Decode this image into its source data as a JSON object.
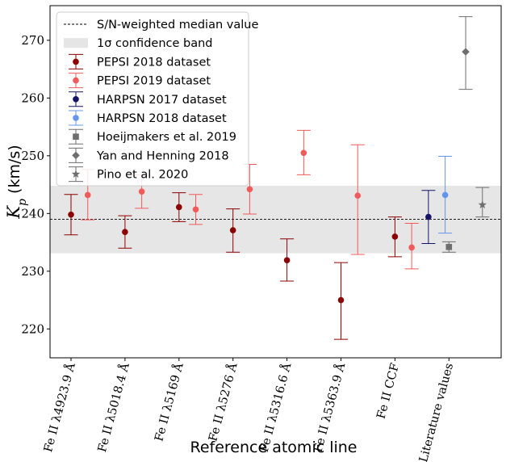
{
  "chart_data": {
    "type": "scatter",
    "xlabel": "Reference atomic line",
    "ylabel": "K_p (km/s)",
    "ylabel_parts": {
      "symbol": "K",
      "subscript": "p",
      "unit": " (km/s)"
    },
    "ylim": [
      215,
      276
    ],
    "yticks": [
      220,
      230,
      240,
      250,
      260,
      270
    ],
    "categories": [
      "Fe II λ4923.9 Å",
      "Fe II λ5018.4 Å",
      "Fe II λ5169 Å",
      "Fe II λ5276 Å",
      "Fe II λ5316.6 Å",
      "Fe II λ5363.9 Å",
      "Fe II CCF",
      "Literature values"
    ],
    "median": 239.0,
    "band": [
      233.1,
      244.8
    ],
    "grid": false,
    "legend_position": "top-left",
    "legend": [
      {
        "label": "S/N-weighted median value",
        "kind": "dashed-line",
        "color": "#000000"
      },
      {
        "label": "1σ confidence band",
        "kind": "band",
        "color": "#e5e5e5"
      },
      {
        "label": "PEPSI 2018 dataset",
        "kind": "errorbar-circle",
        "color": "#8b0000"
      },
      {
        "label": "PEPSI 2019 dataset",
        "kind": "errorbar-circle",
        "color": "#f05a5a"
      },
      {
        "label": "HARPSN 2017 dataset",
        "kind": "errorbar-circle",
        "color": "#141466"
      },
      {
        "label": "HARPSN 2018 dataset",
        "kind": "errorbar-circle",
        "color": "#6495ed"
      },
      {
        "label": "Hoeijmakers et al. 2019",
        "kind": "errorbar-square",
        "color": "#6e6e6e"
      },
      {
        "label": "Yan and Henning 2018",
        "kind": "errorbar-diamond",
        "color": "#6e6e6e"
      },
      {
        "label": "Pino et al. 2020",
        "kind": "errorbar-star",
        "color": "#6e6e6e"
      }
    ],
    "series": [
      {
        "name": "PEPSI 2018 dataset",
        "color": "#8b0000",
        "marker": "circle",
        "offset": 0,
        "points": [
          {
            "cat": 0,
            "y": 239.8,
            "lo": 236.3,
            "hi": 243.3
          },
          {
            "cat": 1,
            "y": 236.8,
            "lo": 234.0,
            "hi": 239.6
          },
          {
            "cat": 2,
            "y": 241.1,
            "lo": 238.6,
            "hi": 243.6
          },
          {
            "cat": 3,
            "y": 237.1,
            "lo": 233.3,
            "hi": 240.8
          },
          {
            "cat": 4,
            "y": 231.9,
            "lo": 228.3,
            "hi": 235.6
          },
          {
            "cat": 5,
            "y": 225.0,
            "lo": 218.2,
            "hi": 231.5
          },
          {
            "cat": 6,
            "y": 236.0,
            "lo": 232.5,
            "hi": 239.4
          }
        ]
      },
      {
        "name": "PEPSI 2019 dataset",
        "color": "#f05a5a",
        "marker": "circle",
        "offset": 0.31,
        "points": [
          {
            "cat": 0,
            "y": 243.2,
            "lo": 238.9,
            "hi": 247.6
          },
          {
            "cat": 1,
            "y": 243.8,
            "lo": 240.9,
            "hi": 246.7
          },
          {
            "cat": 2,
            "y": 240.7,
            "lo": 238.1,
            "hi": 243.3
          },
          {
            "cat": 3,
            "y": 244.2,
            "lo": 239.9,
            "hi": 248.5
          },
          {
            "cat": 4,
            "y": 250.5,
            "lo": 246.7,
            "hi": 254.4
          },
          {
            "cat": 5,
            "y": 243.1,
            "lo": 232.9,
            "hi": 251.9
          },
          {
            "cat": 6,
            "y": 234.1,
            "lo": 230.4,
            "hi": 238.3
          }
        ]
      },
      {
        "name": "HARPSN 2017 dataset",
        "color": "#141466",
        "marker": "circle",
        "offset": 0.62,
        "points": [
          {
            "cat": 6,
            "y": 239.4,
            "lo": 234.8,
            "hi": 244.0
          }
        ]
      },
      {
        "name": "HARPSN 2018 dataset",
        "color": "#6495ed",
        "marker": "circle",
        "offset": 0.93,
        "points": [
          {
            "cat": 6,
            "y": 243.2,
            "lo": 236.6,
            "hi": 249.9
          }
        ]
      },
      {
        "name": "Hoeijmakers et al. 2019",
        "color": "#6e6e6e",
        "marker": "square",
        "offset": 0,
        "points": [
          {
            "cat": 7,
            "y": 234.2,
            "lo": 233.3,
            "hi": 235.1
          }
        ]
      },
      {
        "name": "Yan and Henning 2018",
        "color": "#6e6e6e",
        "marker": "diamond",
        "offset": 0.31,
        "points": [
          {
            "cat": 7,
            "y": 268.0,
            "lo": 261.5,
            "hi": 274.1
          }
        ]
      },
      {
        "name": "Pino et al. 2020",
        "color": "#6e6e6e",
        "marker": "star",
        "offset": 0.62,
        "points": [
          {
            "cat": 7,
            "y": 241.5,
            "lo": 239.4,
            "hi": 244.5
          }
        ]
      }
    ]
  }
}
